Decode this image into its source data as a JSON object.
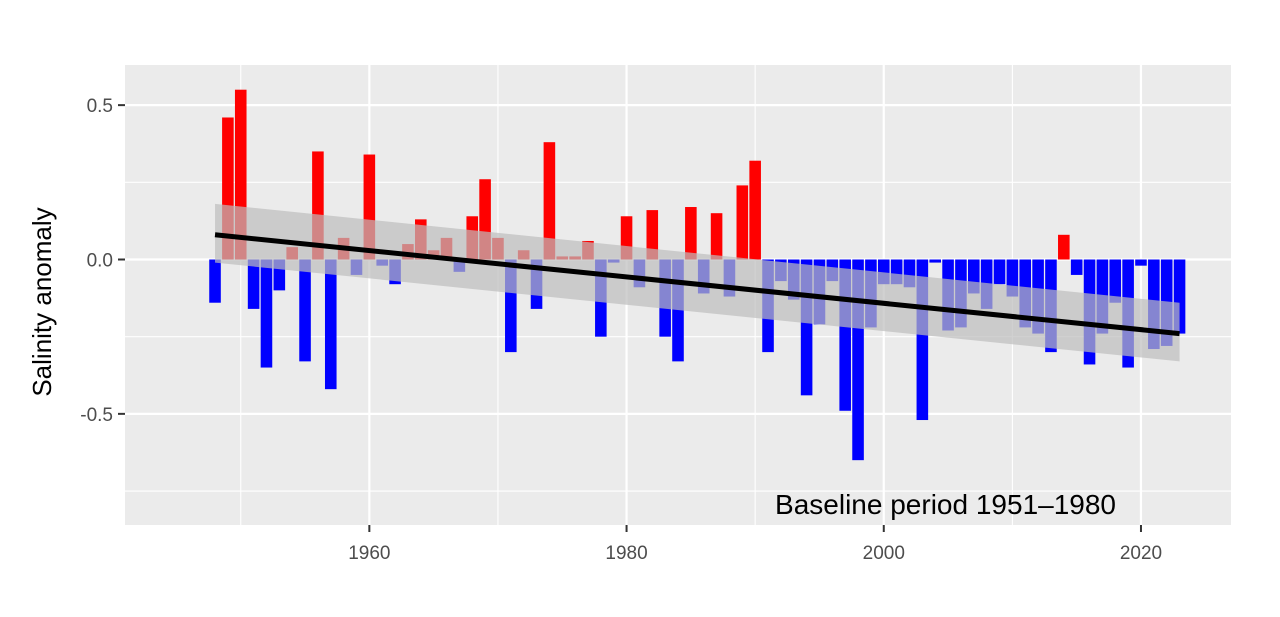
{
  "chart_data": {
    "type": "bar",
    "title": "",
    "xlabel": "",
    "ylabel": "Salinity anomaly",
    "annotation": "Baseline period 1951–1980",
    "xlim": [
      1941,
      2027
    ],
    "ylim": [
      -0.86,
      0.63
    ],
    "x_ticks": [
      1960,
      1980,
      2000,
      2020
    ],
    "y_ticks": [
      0.5,
      0.0,
      -0.5
    ],
    "y_tick_labels": [
      "0.5",
      "0.0",
      "-0.5"
    ],
    "grid": true,
    "legend": "none",
    "colors": {
      "panel_bg": "#ebebeb",
      "grid": "#ffffff",
      "positive": "#ff0000",
      "negative": "#0000ff",
      "trend": "#000000",
      "ribbon": "#bebebe",
      "tick_text": "#4d4d4d"
    },
    "years": [
      1948,
      1949,
      1950,
      1951,
      1952,
      1953,
      1954,
      1955,
      1956,
      1957,
      1958,
      1959,
      1960,
      1961,
      1962,
      1963,
      1964,
      1965,
      1966,
      1967,
      1968,
      1969,
      1970,
      1971,
      1972,
      1973,
      1974,
      1975,
      1976,
      1977,
      1978,
      1979,
      1980,
      1981,
      1982,
      1983,
      1984,
      1985,
      1986,
      1987,
      1988,
      1989,
      1990,
      1991,
      1992,
      1993,
      1994,
      1995,
      1996,
      1997,
      1998,
      1999,
      2000,
      2001,
      2002,
      2003,
      2004,
      2005,
      2006,
      2007,
      2008,
      2009,
      2010,
      2011,
      2012,
      2013,
      2014,
      2015,
      2016,
      2017,
      2018,
      2019,
      2020,
      2021,
      2022,
      2023
    ],
    "values": [
      -0.14,
      0.46,
      0.55,
      -0.16,
      -0.35,
      -0.1,
      0.04,
      -0.33,
      0.35,
      -0.42,
      0.07,
      -0.05,
      0.34,
      -0.02,
      -0.08,
      0.05,
      0.13,
      0.03,
      0.07,
      -0.04,
      0.14,
      0.26,
      0.07,
      -0.3,
      0.03,
      -0.16,
      0.38,
      0.01,
      0.01,
      0.06,
      -0.25,
      -0.01,
      0.14,
      -0.09,
      0.16,
      -0.25,
      -0.33,
      0.17,
      -0.11,
      0.15,
      -0.12,
      0.24,
      0.32,
      -0.3,
      -0.07,
      -0.13,
      -0.44,
      -0.21,
      -0.07,
      -0.49,
      -0.65,
      -0.22,
      -0.08,
      -0.08,
      -0.09,
      -0.52,
      -0.01,
      -0.23,
      -0.22,
      -0.11,
      -0.16,
      -0.08,
      -0.12,
      -0.22,
      -0.24,
      -0.3,
      0.08,
      -0.05,
      -0.34,
      -0.24,
      -0.14,
      -0.35,
      -0.02,
      -0.29,
      -0.28,
      -0.24
    ],
    "trend": {
      "x": [
        1948,
        2023
      ],
      "y": [
        0.08,
        -0.24
      ],
      "ribbon_upper": [
        0.18,
        -0.14
      ],
      "ribbon_lower": [
        -0.01,
        -0.33
      ]
    }
  }
}
